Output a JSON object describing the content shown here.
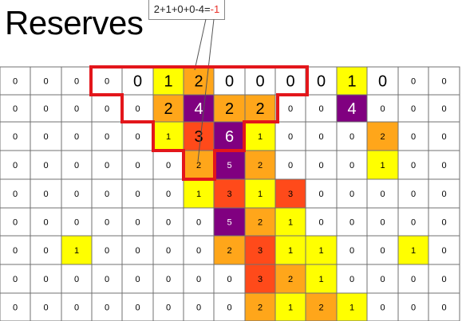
{
  "title": "Reserves",
  "callout": {
    "expression": "2+1+0+0-4=",
    "result": "-1"
  },
  "colors": {
    "c0": "#ffffff",
    "c1": "#ffff00",
    "c2": "#ffa61a",
    "c3": "#ff4a1a",
    "c4": "#800080",
    "c5": "#800080",
    "c6": "#800080",
    "highlight": "#e3161b",
    "grid_line": "#707070"
  },
  "grid": {
    "rows": [
      [
        0,
        0,
        0,
        0,
        0,
        1,
        2,
        0,
        0,
        0,
        0,
        1,
        0,
        0,
        0
      ],
      [
        0,
        0,
        0,
        0,
        0,
        2,
        4,
        2,
        2,
        0,
        0,
        4,
        0,
        0,
        0
      ],
      [
        0,
        0,
        0,
        0,
        0,
        1,
        3,
        6,
        1,
        0,
        0,
        0,
        2,
        0,
        0
      ],
      [
        0,
        0,
        0,
        0,
        0,
        0,
        2,
        5,
        2,
        0,
        0,
        0,
        1,
        0,
        0
      ],
      [
        0,
        0,
        0,
        0,
        0,
        0,
        1,
        3,
        1,
        3,
        0,
        0,
        0,
        0,
        0
      ],
      [
        0,
        0,
        0,
        0,
        0,
        0,
        0,
        5,
        2,
        1,
        0,
        0,
        0,
        0,
        0
      ],
      [
        0,
        0,
        1,
        0,
        0,
        0,
        0,
        2,
        3,
        1,
        1,
        0,
        0,
        1,
        0
      ],
      [
        0,
        0,
        0,
        0,
        0,
        0,
        0,
        0,
        3,
        2,
        1,
        0,
        0,
        0,
        0
      ],
      [
        0,
        0,
        0,
        0,
        0,
        0,
        0,
        0,
        2,
        1,
        2,
        1,
        0,
        0,
        0
      ]
    ],
    "large_cells": [
      [
        0,
        4
      ],
      [
        0,
        5
      ],
      [
        0,
        6
      ],
      [
        0,
        7
      ],
      [
        0,
        8
      ],
      [
        0,
        9
      ],
      [
        0,
        10
      ],
      [
        0,
        11
      ],
      [
        0,
        12
      ],
      [
        1,
        5
      ],
      [
        1,
        6
      ],
      [
        1,
        7
      ],
      [
        1,
        8
      ],
      [
        1,
        11
      ],
      [
        2,
        6
      ],
      [
        2,
        7
      ]
    ]
  }
}
